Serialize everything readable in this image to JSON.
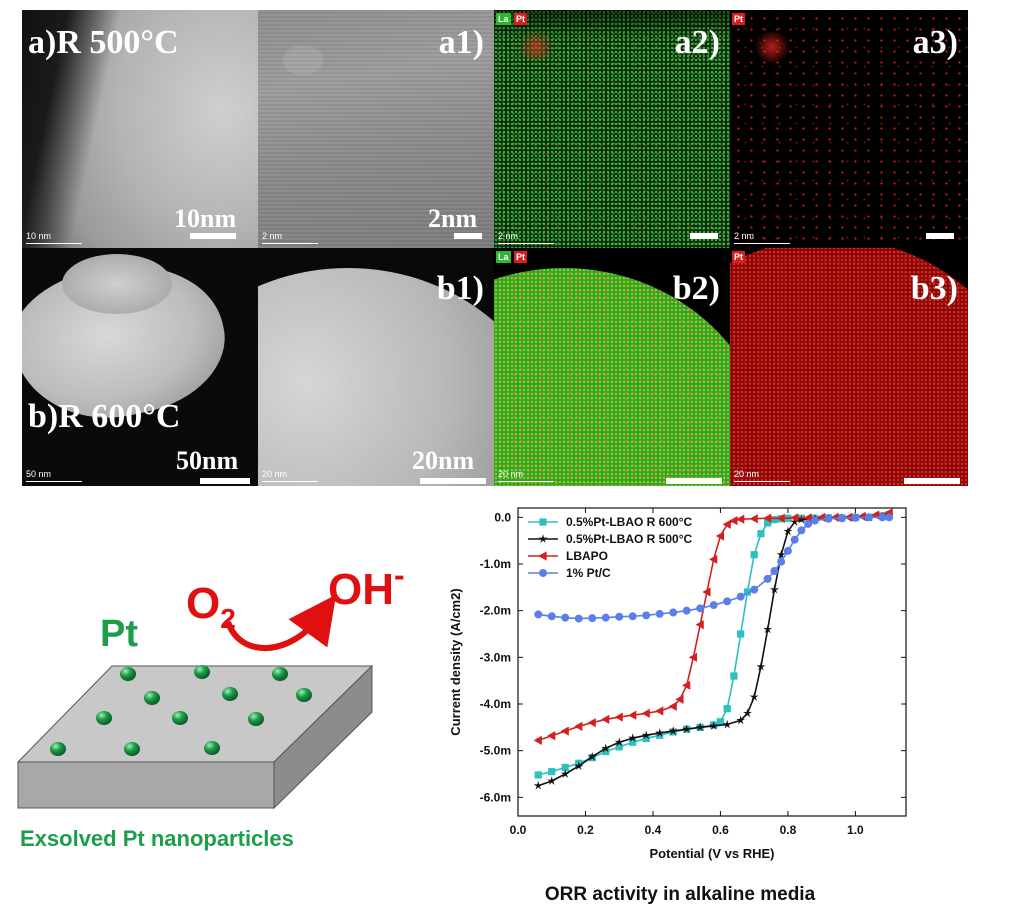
{
  "micrographs": {
    "row_a": {
      "label": "a)R 500°C",
      "panels": [
        {
          "label": "",
          "scale_small": "10 nm",
          "scale_big": "10nm"
        },
        {
          "label": "a1)",
          "scale_small": "2 nm",
          "scale_big": "2nm"
        },
        {
          "label": "a2)",
          "scale_small": "2 nm",
          "scale_big": "",
          "tags": [
            "La",
            "Pt"
          ]
        },
        {
          "label": "a3)",
          "scale_small": "2 nm",
          "scale_big": "",
          "tags": [
            "Pt"
          ]
        }
      ]
    },
    "row_b": {
      "label": "b)R 600°C",
      "panels": [
        {
          "label": "",
          "scale_small": "50 nm",
          "scale_big": "50nm"
        },
        {
          "label": "b1)",
          "scale_small": "20 nm",
          "scale_big": "20nm"
        },
        {
          "label": "b2)",
          "scale_small": "20 nm",
          "scale_big": "",
          "tags": [
            "La",
            "Pt"
          ]
        },
        {
          "label": "b3)",
          "scale_small": "20 nm",
          "scale_big": "",
          "tags": [
            "Pt"
          ]
        }
      ]
    }
  },
  "schematic": {
    "o2": "O",
    "o2_sub": "2",
    "oh": "OH",
    "oh_sup": "-",
    "pt": "Pt",
    "caption": "Exsolved Pt nanoparticles",
    "colors": {
      "particle": "#1e9e4a",
      "arrow": "#e01010",
      "slab_top": "#c8c8c8",
      "slab_side": "#a8a8a8"
    }
  },
  "chart_data": {
    "type": "line",
    "title": "ORR activity in alkaline media",
    "xlabel": "Potential (V vs RHE)",
    "ylabel": "Current density (A/cm2)",
    "xlim": [
      0.0,
      1.15
    ],
    "ylim": [
      -6.4,
      0.2
    ],
    "x_ticks": [
      0.0,
      0.2,
      0.4,
      0.6,
      0.8,
      1.0
    ],
    "x_tick_labels": [
      "0.0",
      "0.2",
      "0.4",
      "0.6",
      "0.8",
      "1.0"
    ],
    "y_ticks": [
      0.0,
      -1.0,
      -2.0,
      -3.0,
      -4.0,
      -5.0,
      -6.0
    ],
    "y_tick_labels": [
      "0.0",
      "-1.0m",
      "-2.0m",
      "-3.0m",
      "-4.0m",
      "-5.0m",
      "-6.0m"
    ],
    "legend_position": "top-left",
    "series": [
      {
        "name": "0.5%Pt-LBAO R 600°C",
        "color": "#2ebfbf",
        "marker": "square",
        "x": [
          0.06,
          0.1,
          0.14,
          0.18,
          0.22,
          0.26,
          0.3,
          0.34,
          0.38,
          0.42,
          0.46,
          0.5,
          0.54,
          0.58,
          0.6,
          0.62,
          0.64,
          0.66,
          0.68,
          0.7,
          0.72,
          0.74,
          0.76,
          0.78,
          0.8,
          0.84,
          0.88,
          0.92,
          0.96,
          1.0,
          1.04,
          1.08,
          1.1
        ],
        "y": [
          -5.52,
          -5.45,
          -5.36,
          -5.27,
          -5.15,
          -5.02,
          -4.92,
          -4.82,
          -4.74,
          -4.67,
          -4.6,
          -4.54,
          -4.5,
          -4.45,
          -4.38,
          -4.1,
          -3.4,
          -2.5,
          -1.6,
          -0.8,
          -0.35,
          -0.12,
          -0.05,
          -0.03,
          -0.02,
          -0.02,
          -0.02,
          -0.01,
          -0.01,
          0.0,
          0.0,
          0.03,
          0.06
        ]
      },
      {
        "name": "0.5%Pt-LBAO R 500°C",
        "color": "#111111",
        "marker": "star",
        "x": [
          0.06,
          0.1,
          0.14,
          0.18,
          0.22,
          0.26,
          0.3,
          0.34,
          0.38,
          0.42,
          0.46,
          0.5,
          0.54,
          0.58,
          0.62,
          0.66,
          0.68,
          0.7,
          0.72,
          0.74,
          0.76,
          0.78,
          0.8,
          0.82,
          0.84,
          0.88,
          0.92,
          0.96,
          1.0,
          1.04,
          1.08,
          1.1
        ],
        "y": [
          -5.75,
          -5.65,
          -5.5,
          -5.33,
          -5.13,
          -4.95,
          -4.82,
          -4.73,
          -4.67,
          -4.62,
          -4.58,
          -4.54,
          -4.5,
          -4.47,
          -4.44,
          -4.35,
          -4.2,
          -3.85,
          -3.2,
          -2.4,
          -1.55,
          -0.8,
          -0.3,
          -0.1,
          -0.05,
          -0.03,
          -0.02,
          -0.01,
          0.0,
          0.0,
          0.02,
          0.04
        ]
      },
      {
        "name": "LBAPO",
        "color": "#d42020",
        "marker": "triangle-left",
        "x": [
          0.06,
          0.1,
          0.14,
          0.18,
          0.22,
          0.26,
          0.3,
          0.34,
          0.38,
          0.42,
          0.46,
          0.48,
          0.5,
          0.52,
          0.54,
          0.56,
          0.58,
          0.6,
          0.62,
          0.64,
          0.66,
          0.7,
          0.74,
          0.78,
          0.82,
          0.86,
          0.9,
          0.94,
          0.98,
          1.02,
          1.06,
          1.1
        ],
        "y": [
          -4.78,
          -4.68,
          -4.58,
          -4.48,
          -4.4,
          -4.33,
          -4.28,
          -4.24,
          -4.2,
          -4.15,
          -4.05,
          -3.9,
          -3.6,
          -3.0,
          -2.3,
          -1.6,
          -0.9,
          -0.4,
          -0.15,
          -0.07,
          -0.04,
          -0.03,
          -0.02,
          -0.02,
          -0.01,
          -0.01,
          0.0,
          0.0,
          0.0,
          0.02,
          0.05,
          0.1
        ]
      },
      {
        "name": "1% Pt/C",
        "color": "#5a7fe8",
        "marker": "circle",
        "x": [
          0.06,
          0.1,
          0.14,
          0.18,
          0.22,
          0.26,
          0.3,
          0.34,
          0.38,
          0.42,
          0.46,
          0.5,
          0.54,
          0.58,
          0.62,
          0.66,
          0.7,
          0.74,
          0.76,
          0.78,
          0.8,
          0.82,
          0.84,
          0.86,
          0.88,
          0.92,
          0.96,
          1.0,
          1.04,
          1.08,
          1.1
        ],
        "y": [
          -2.08,
          -2.12,
          -2.15,
          -2.17,
          -2.16,
          -2.15,
          -2.13,
          -2.12,
          -2.1,
          -2.07,
          -2.04,
          -2.0,
          -1.95,
          -1.88,
          -1.8,
          -1.7,
          -1.55,
          -1.32,
          -1.15,
          -0.95,
          -0.72,
          -0.48,
          -0.28,
          -0.14,
          -0.07,
          -0.03,
          -0.02,
          -0.01,
          0.0,
          0.0,
          0.0
        ]
      }
    ]
  }
}
